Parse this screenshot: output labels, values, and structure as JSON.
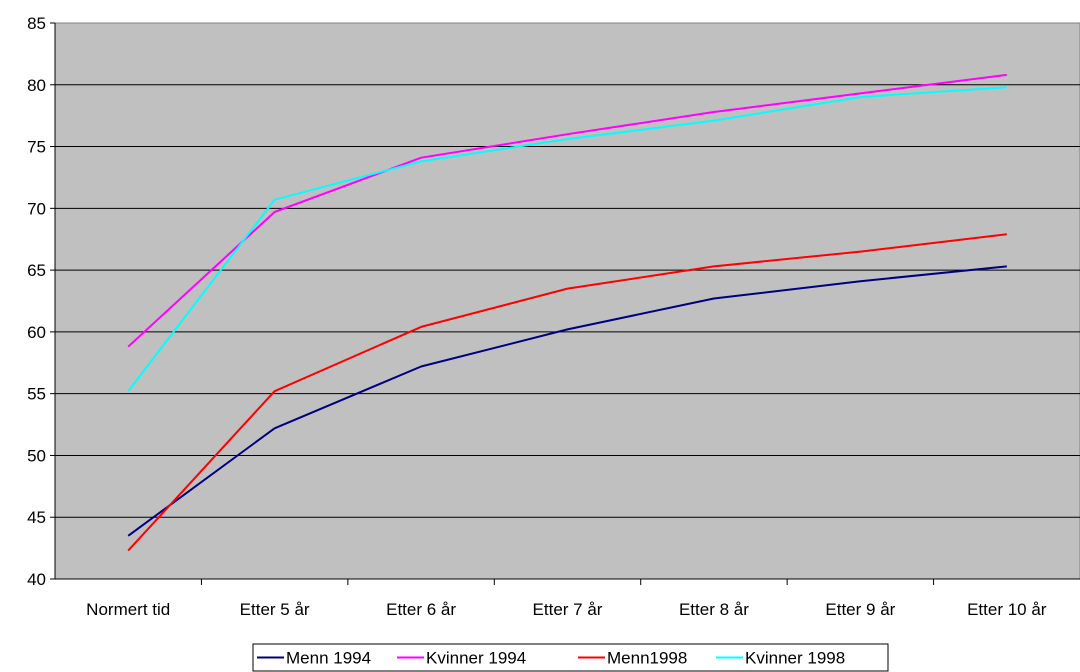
{
  "chart_data": {
    "type": "line",
    "title": "",
    "xlabel": "",
    "ylabel": "",
    "categories": [
      "Normert tid",
      "Etter 5 år",
      "Etter 6 år",
      "Etter 7 år",
      "Etter 8 år",
      "Etter 9 år",
      "Etter 10 år"
    ],
    "ylim": [
      40,
      85
    ],
    "yticks": [
      40,
      45,
      50,
      55,
      60,
      65,
      70,
      75,
      80,
      85
    ],
    "grid": true,
    "legend_position": "bottom",
    "plot_background": "#c0c0c0",
    "series": [
      {
        "name": "Menn 1994",
        "color": "#000080",
        "values": [
          43.5,
          52.2,
          57.2,
          60.2,
          62.7,
          64.1,
          65.3
        ]
      },
      {
        "name": "Kvinner 1994",
        "color": "#ff00ff",
        "values": [
          58.8,
          69.7,
          74.1,
          76.0,
          77.8,
          79.3,
          80.8
        ]
      },
      {
        "name": "Menn1998",
        "color": "#ff0000",
        "values": [
          42.3,
          55.2,
          60.4,
          63.5,
          65.3,
          66.5,
          67.9
        ]
      },
      {
        "name": "Kvinner 1998",
        "color": "#00ffff",
        "values": [
          55.2,
          70.7,
          73.8,
          75.6,
          77.1,
          79.0,
          79.8
        ]
      }
    ]
  }
}
